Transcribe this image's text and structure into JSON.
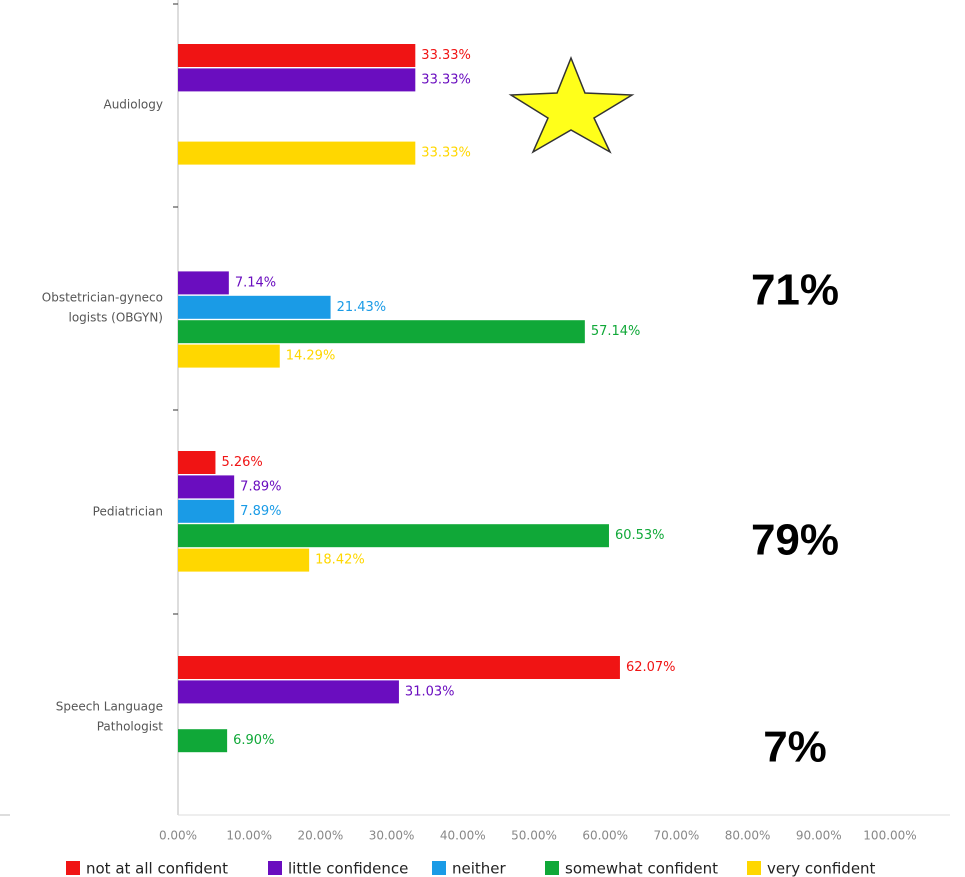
{
  "chart_data": {
    "type": "hbar",
    "categories": [
      [
        "Audiology"
      ],
      [
        "Obstetrician-gyneco",
        "logists (OBGYN)"
      ],
      [
        "Pediatrician"
      ],
      [
        "Speech Language",
        "Pathologist"
      ]
    ],
    "series": [
      {
        "name": "not at all confident",
        "color": "#f01414",
        "values": [
          33.33,
          null,
          5.26,
          62.07
        ],
        "value_labels": [
          "33.33%",
          null,
          "5.26%",
          "62.07%"
        ]
      },
      {
        "name": "little confidence",
        "color": "#6a0dbf",
        "values": [
          33.33,
          7.14,
          7.89,
          31.03
        ],
        "value_labels": [
          "33.33%",
          "7.14%",
          "7.89%",
          "31.03%"
        ]
      },
      {
        "name": "neither",
        "color": "#1a9be6",
        "values": [
          null,
          21.43,
          7.89,
          null
        ],
        "value_labels": [
          null,
          "21.43%",
          "7.89%",
          null
        ]
      },
      {
        "name": "somewhat confident",
        "color": "#10a838",
        "values": [
          null,
          57.14,
          60.53,
          6.9
        ],
        "value_labels": [
          null,
          "57.14%",
          "60.53%",
          "6.90%"
        ]
      },
      {
        "name": "very confident",
        "color": "#ffd700",
        "values": [
          33.33,
          14.29,
          18.42,
          null
        ],
        "value_labels": [
          "33.33%",
          "14.29%",
          "18.42%",
          null
        ]
      }
    ],
    "xlim": [
      0,
      100
    ],
    "xticks": [
      {
        "value": 0,
        "label": "0.00%"
      },
      {
        "value": 10,
        "label": "10.00%"
      },
      {
        "value": 20,
        "label": "20.00%"
      },
      {
        "value": 30,
        "label": "30.00%"
      },
      {
        "value": 40,
        "label": "40.00%"
      },
      {
        "value": 50,
        "label": "50.00%"
      },
      {
        "value": 60,
        "label": "60.00%"
      },
      {
        "value": 70,
        "label": "70.00%"
      },
      {
        "value": 80,
        "label": "80.00%"
      },
      {
        "value": 90,
        "label": "90.00%"
      },
      {
        "value": 100,
        "label": "100.00%"
      }
    ],
    "legend": "bottom",
    "annotations": [
      "71%",
      "79%",
      "7%"
    ]
  }
}
